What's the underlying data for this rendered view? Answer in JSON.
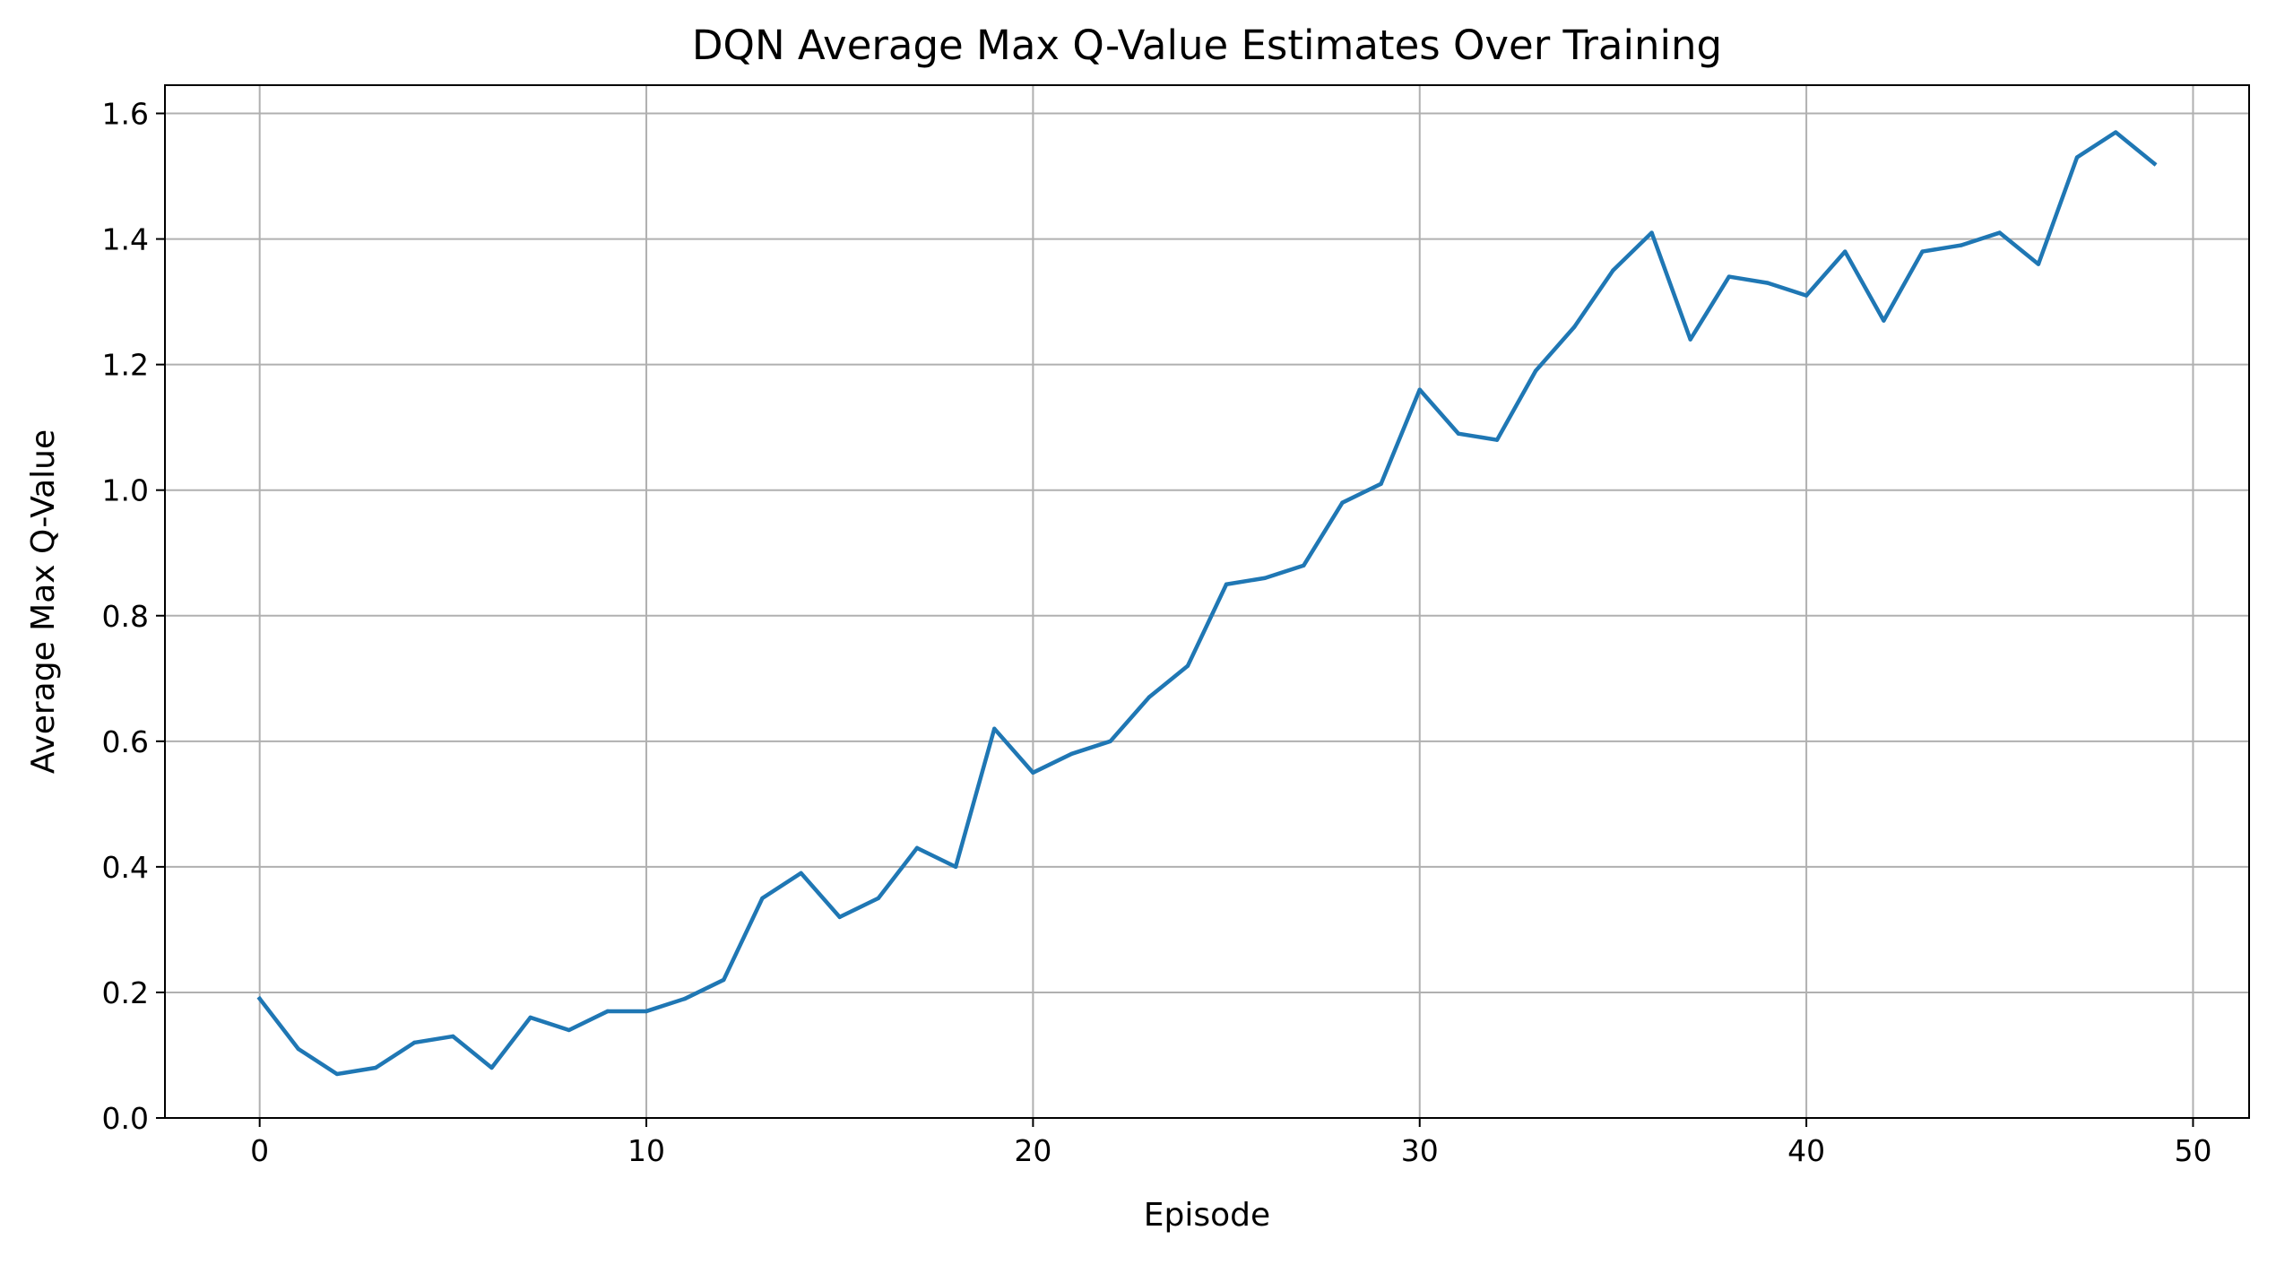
{
  "chart_data": {
    "type": "line",
    "title": "DQN Average Max Q-Value Estimates Over Training",
    "xlabel": "Episode",
    "ylabel": "Average Max Q-Value",
    "xlim": [
      -2.45,
      51.45
    ],
    "ylim": [
      0.0,
      1.645
    ],
    "xticks": [
      0,
      10,
      20,
      30,
      40,
      50
    ],
    "xtick_labels": [
      "0",
      "10",
      "20",
      "30",
      "40",
      "50"
    ],
    "yticks": [
      0.0,
      0.2,
      0.4,
      0.6,
      0.8,
      1.0,
      1.2,
      1.4,
      1.6
    ],
    "ytick_labels": [
      "0.0",
      "0.2",
      "0.4",
      "0.6",
      "0.8",
      "1.0",
      "1.2",
      "1.4",
      "1.6"
    ],
    "grid": true,
    "line_color": "#1f77b4",
    "grid_color": "#b0b0b0",
    "x": [
      0,
      1,
      2,
      3,
      4,
      5,
      6,
      7,
      8,
      9,
      10,
      11,
      12,
      13,
      14,
      15,
      16,
      17,
      18,
      19,
      20,
      21,
      22,
      23,
      24,
      25,
      26,
      27,
      28,
      29,
      30,
      31,
      32,
      33,
      34,
      35,
      36,
      37,
      38,
      39,
      40,
      41,
      42,
      43,
      44,
      45,
      46,
      47,
      48,
      49
    ],
    "series": [
      {
        "values": [
          0.19,
          0.11,
          0.07,
          0.08,
          0.12,
          0.13,
          0.08,
          0.16,
          0.14,
          0.17,
          0.17,
          0.19,
          0.22,
          0.35,
          0.39,
          0.32,
          0.35,
          0.43,
          0.4,
          0.62,
          0.55,
          0.58,
          0.6,
          0.67,
          0.72,
          0.85,
          0.86,
          0.88,
          0.98,
          1.01,
          1.16,
          1.09,
          1.08,
          1.19,
          1.26,
          1.35,
          1.41,
          1.24,
          1.34,
          1.33,
          1.31,
          1.38,
          1.27,
          1.38,
          1.39,
          1.41,
          1.36,
          1.53,
          1.57,
          1.52
        ]
      }
    ]
  }
}
